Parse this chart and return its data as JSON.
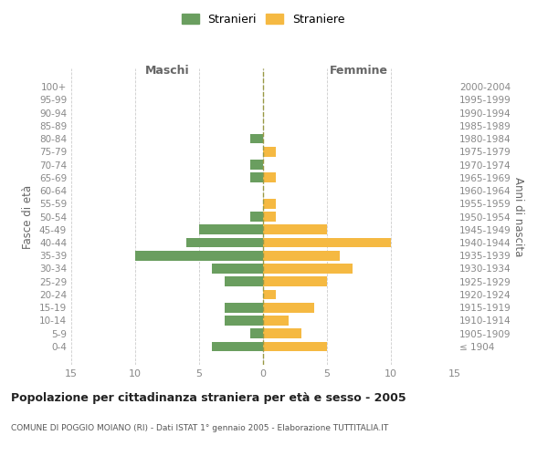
{
  "age_groups": [
    "100+",
    "95-99",
    "90-94",
    "85-89",
    "80-84",
    "75-79",
    "70-74",
    "65-69",
    "60-64",
    "55-59",
    "50-54",
    "45-49",
    "40-44",
    "35-39",
    "30-34",
    "25-29",
    "20-24",
    "15-19",
    "10-14",
    "5-9",
    "0-4"
  ],
  "birth_years": [
    "≤ 1904",
    "1905-1909",
    "1910-1914",
    "1915-1919",
    "1920-1924",
    "1925-1929",
    "1930-1934",
    "1935-1939",
    "1940-1944",
    "1945-1949",
    "1950-1954",
    "1955-1959",
    "1960-1964",
    "1965-1969",
    "1970-1974",
    "1975-1979",
    "1980-1984",
    "1985-1989",
    "1990-1994",
    "1995-1999",
    "2000-2004"
  ],
  "maschi": [
    0,
    0,
    0,
    0,
    1,
    0,
    1,
    1,
    0,
    0,
    1,
    5,
    6,
    10,
    4,
    3,
    0,
    3,
    3,
    1,
    4
  ],
  "femmine": [
    0,
    0,
    0,
    0,
    0,
    1,
    0,
    1,
    0,
    1,
    1,
    5,
    10,
    6,
    7,
    5,
    1,
    4,
    2,
    3,
    5
  ],
  "maschi_color": "#6a9e5f",
  "femmine_color": "#f5b942",
  "background_color": "#ffffff",
  "grid_color": "#cccccc",
  "title": "Popolazione per cittadinanza straniera per età e sesso - 2005",
  "subtitle": "COMUNE DI POGGIO MOIANO (RI) - Dati ISTAT 1° gennaio 2005 - Elaborazione TUTTITALIA.IT",
  "ylabel_left": "Fasce di età",
  "ylabel_right": "Anni di nascita",
  "xlabel_left": "Maschi",
  "xlabel_right": "Femmine",
  "legend_maschi": "Stranieri",
  "legend_femmine": "Straniere",
  "xlim": 15,
  "axis_label_color": "#666666",
  "tick_color": "#888888",
  "bar_height": 0.75
}
